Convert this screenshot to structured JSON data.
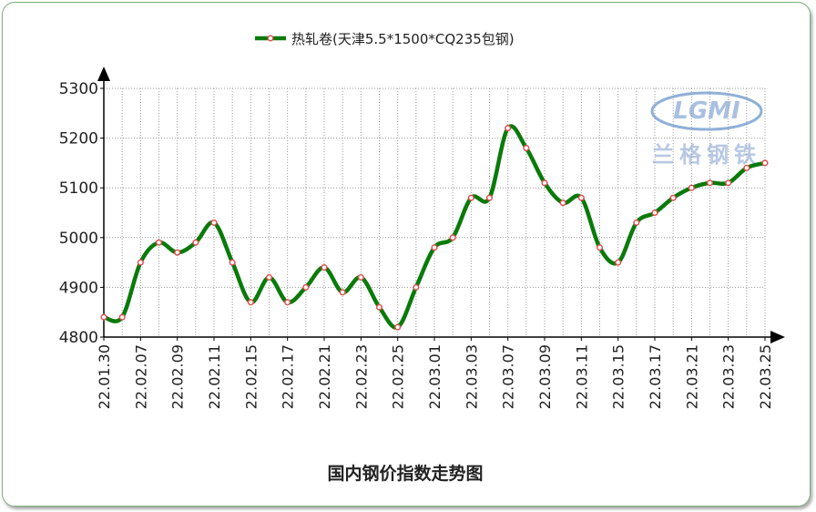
{
  "chart_data": {
    "type": "line",
    "title": "国内钢价指数走势图",
    "logo": {
      "text": "LGMI",
      "subtext": "兰格钢铁"
    },
    "categories": [
      "22.01.30",
      null,
      "22.02.07",
      null,
      "22.02.09",
      null,
      "22.02.11",
      null,
      "22.02.15",
      null,
      "22.02.17",
      null,
      "22.02.21",
      null,
      "22.02.23",
      null,
      "22.02.25",
      null,
      "22.03.01",
      null,
      "22.03.03",
      null,
      "22.03.07",
      null,
      "22.03.09",
      null,
      "22.03.11",
      null,
      "22.03.15",
      null,
      "22.03.17",
      null,
      "22.03.21",
      null,
      "22.03.23",
      null,
      "22.03.25"
    ],
    "series": [
      {
        "name": "热轧卷(天津5.5*1500*CQ235包钢)",
        "color": "#0a7a0a",
        "values": [
          4840,
          4840,
          4950,
          4990,
          4970,
          4990,
          5030,
          4950,
          4870,
          4920,
          4870,
          4900,
          4940,
          4890,
          4920,
          4860,
          4820,
          4900,
          4980,
          5000,
          5080,
          5080,
          5220,
          5180,
          5110,
          5070,
          5080,
          4980,
          4950,
          5030,
          5050,
          5080,
          5100,
          5110,
          5110,
          5140,
          5150
        ]
      }
    ],
    "ylim": [
      4800,
      5300
    ],
    "yticks": [
      4800,
      4900,
      5000,
      5100,
      5200,
      5300
    ],
    "grid": true,
    "legend": "top"
  }
}
